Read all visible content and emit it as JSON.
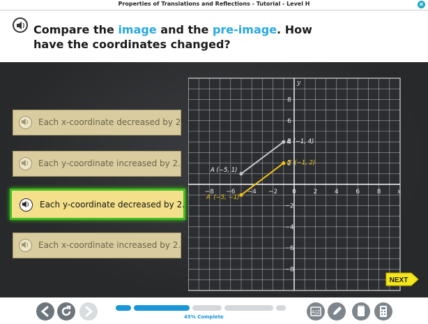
{
  "window": {
    "title": "Properties of Translations and Reflections - Tutorial - Level H"
  },
  "question": {
    "part1": "Compare the ",
    "image": "image",
    "part2": " and the ",
    "preimage": "pre-image",
    "part3": ". How have the coordinates changed?"
  },
  "choices": [
    {
      "label": "Each x-coordinate decreased by 2.",
      "selected": false
    },
    {
      "label": "Each y-coordinate increased by 2.",
      "selected": false
    },
    {
      "label": "Each y-coordinate decreased by 2.",
      "selected": true
    },
    {
      "label": "Each x-coordinate increased by 2.",
      "selected": false
    }
  ],
  "graph": {
    "x_axis_label": "x",
    "y_axis_label": "y",
    "x_ticks": [
      "−8",
      "−6",
      "−4",
      "−2",
      "0",
      "2",
      "4",
      "6",
      "8"
    ],
    "y_ticks": [
      "8",
      "6",
      "4",
      "2",
      "−2",
      "−4",
      "−6",
      "−8"
    ],
    "points": [
      {
        "name": "A",
        "label": "A (−5, 1)",
        "x": -5,
        "y": 1
      },
      {
        "name": "B",
        "label": "B (−1, 4)",
        "x": -1,
        "y": 4
      },
      {
        "name": "A'",
        "label": "A′ (−5, −1)",
        "x": -5,
        "y": -1
      },
      {
        "name": "B'",
        "label": "B′ (−1, 2)",
        "x": -1,
        "y": 2
      }
    ],
    "colors": {
      "preimage": "#c8c8c8",
      "image": "#f2c21b",
      "label_badge": "#3f8a2e"
    }
  },
  "buttons": {
    "next": "NEXT"
  },
  "progress": {
    "label": "45% Complete",
    "value": 0.45
  },
  "tools": [
    "back-icon",
    "replay-icon",
    "forward-icon",
    "glossary-icon",
    "pencil-icon",
    "notebook-icon",
    "calculator-icon"
  ]
}
